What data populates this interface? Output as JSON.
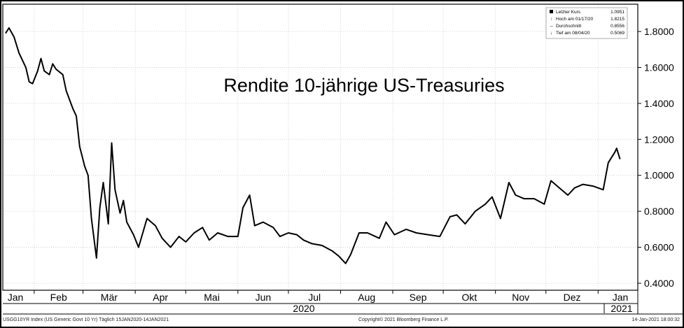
{
  "chart_data": {
    "type": "line",
    "title": "Rendite 10-jährige US-Treasuries",
    "year_labels": [
      "2020",
      "2021"
    ],
    "y_ticks": [
      "1.8000",
      "1.6000",
      "1.4000",
      "1.2000",
      "1.0000",
      "0.8000",
      "0.6000",
      "0.4000"
    ],
    "ylim": [
      0.4,
      1.85
    ],
    "x_ticks": [
      "Jan",
      "Feb",
      "Mär",
      "Apr",
      "Mai",
      "Jun",
      "Jul",
      "Aug",
      "Sep",
      "Okt",
      "Nov",
      "Dez",
      "Jan"
    ],
    "grid": true,
    "line_color": "#000000",
    "legend": {
      "placement": "top-right",
      "items": [
        {
          "label": "Letzter Kurs",
          "value": "1.0951"
        },
        {
          "label": "Hoch am 01/17/20",
          "value": "1.8215"
        },
        {
          "label": "Durchschnitt",
          "value": "0.8556"
        },
        {
          "label": "Tief am 08/04/20",
          "value": "0.5069"
        }
      ]
    },
    "series": [
      {
        "x": [
          "2020-01-15",
          "2020-01-17",
          "2020-01-20",
          "2020-01-23",
          "2020-01-27",
          "2020-01-29",
          "2020-01-31",
          "2020-02-03",
          "2020-02-05",
          "2020-02-07",
          "2020-02-10",
          "2020-02-12",
          "2020-02-14",
          "2020-02-18",
          "2020-02-20",
          "2020-02-24",
          "2020-02-26",
          "2020-02-28",
          "2020-03-02",
          "2020-03-04",
          "2020-03-06",
          "2020-03-09",
          "2020-03-11",
          "2020-03-13",
          "2020-03-16",
          "2020-03-18",
          "2020-03-20",
          "2020-03-23",
          "2020-03-25",
          "2020-03-27",
          "2020-03-31",
          "2020-04-03",
          "2020-04-08",
          "2020-04-13",
          "2020-04-17",
          "2020-04-22",
          "2020-04-27",
          "2020-05-01",
          "2020-05-06",
          "2020-05-11",
          "2020-05-15",
          "2020-05-20",
          "2020-05-26",
          "2020-06-01",
          "2020-06-04",
          "2020-06-08",
          "2020-06-11",
          "2020-06-16",
          "2020-06-22",
          "2020-06-26",
          "2020-07-01",
          "2020-07-06",
          "2020-07-10",
          "2020-07-15",
          "2020-07-21",
          "2020-07-27",
          "2020-07-31",
          "2020-08-04",
          "2020-08-07",
          "2020-08-12",
          "2020-08-17",
          "2020-08-24",
          "2020-08-28",
          "2020-09-02",
          "2020-09-09",
          "2020-09-15",
          "2020-09-22",
          "2020-09-29",
          "2020-10-05",
          "2020-10-09",
          "2020-10-14",
          "2020-10-20",
          "2020-10-26",
          "2020-10-30",
          "2020-11-04",
          "2020-11-09",
          "2020-11-13",
          "2020-11-18",
          "2020-11-24",
          "2020-11-30",
          "2020-12-04",
          "2020-12-09",
          "2020-12-14",
          "2020-12-18",
          "2020-12-23",
          "2020-12-29",
          "2021-01-04",
          "2021-01-07",
          "2021-01-11",
          "2021-01-12",
          "2021-01-14"
        ],
        "y": [
          1.79,
          1.82,
          1.77,
          1.68,
          1.6,
          1.52,
          1.51,
          1.58,
          1.65,
          1.58,
          1.56,
          1.62,
          1.59,
          1.56,
          1.47,
          1.37,
          1.33,
          1.16,
          1.05,
          1.0,
          0.76,
          0.54,
          0.82,
          0.96,
          0.73,
          1.18,
          0.92,
          0.79,
          0.86,
          0.74,
          0.67,
          0.6,
          0.76,
          0.72,
          0.65,
          0.6,
          0.66,
          0.63,
          0.68,
          0.71,
          0.64,
          0.68,
          0.66,
          0.66,
          0.82,
          0.89,
          0.72,
          0.74,
          0.71,
          0.66,
          0.68,
          0.67,
          0.64,
          0.62,
          0.61,
          0.58,
          0.55,
          0.51,
          0.56,
          0.68,
          0.68,
          0.65,
          0.74,
          0.67,
          0.7,
          0.68,
          0.67,
          0.66,
          0.77,
          0.78,
          0.73,
          0.8,
          0.84,
          0.88,
          0.76,
          0.96,
          0.89,
          0.87,
          0.87,
          0.84,
          0.97,
          0.93,
          0.89,
          0.93,
          0.95,
          0.94,
          0.92,
          1.07,
          1.13,
          1.15,
          1.09
        ]
      }
    ]
  },
  "footer": {
    "left": "USGG10YR Index (US Generic Govt 10 Yr)  Täglich 15JAN2020-14JAN2021",
    "center": "Copyright© 2021 Bloomberg Finance L.P.",
    "right": "14-Jan-2021 18:00:32"
  }
}
